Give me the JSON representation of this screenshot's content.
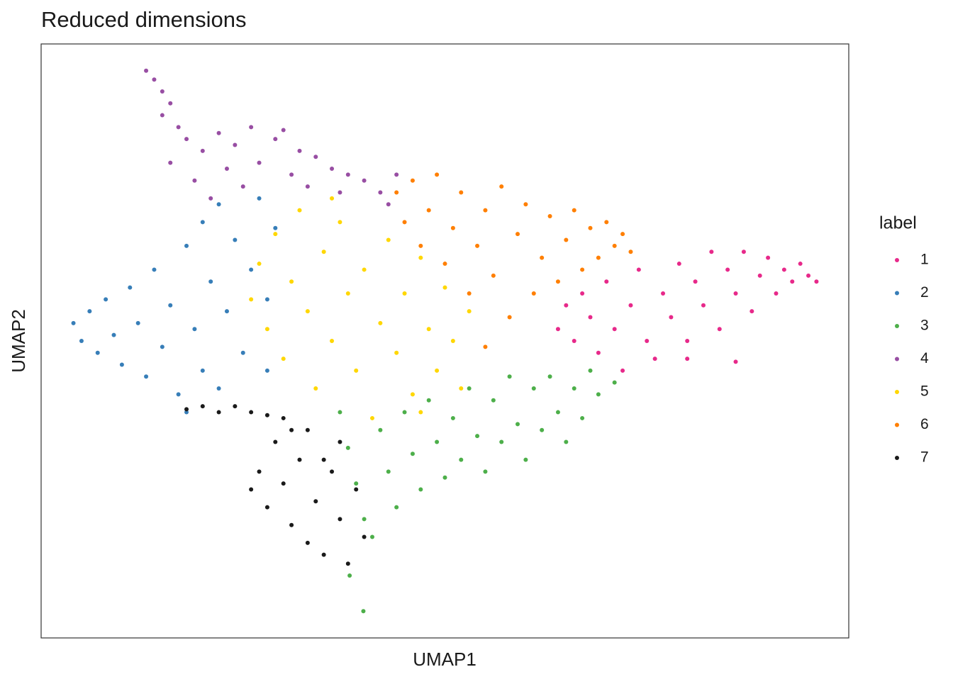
{
  "chart_data": {
    "type": "scatter",
    "title": "Reduced dimensions",
    "x_label": "UMAP1",
    "y_label": "UMAP2",
    "legend_title": "label",
    "legend": "right",
    "xlim": [
      0,
      100
    ],
    "ylim": [
      0,
      100
    ],
    "series": [
      {
        "name": "1",
        "color": "#e7298a",
        "x": [
          64,
          65,
          66,
          67,
          68,
          69,
          70,
          71,
          72,
          73,
          74,
          75,
          76,
          77,
          78,
          79,
          80,
          81,
          82,
          83,
          84,
          85,
          86,
          87,
          88,
          89,
          90,
          91,
          92,
          93,
          94,
          95,
          96,
          86,
          80
        ],
        "values": [
          52,
          56,
          50,
          58,
          54,
          48,
          60,
          52,
          45,
          56,
          62,
          50,
          47,
          58,
          54,
          63,
          50,
          60,
          56,
          65,
          52,
          62,
          58,
          65,
          55,
          61,
          64,
          58,
          62,
          60,
          63,
          61,
          60,
          46.5,
          47
        ]
      },
      {
        "name": "2",
        "color": "#377eb8",
        "x": [
          4,
          5,
          6,
          7,
          8,
          9,
          10,
          11,
          12,
          13,
          14,
          15,
          16,
          17,
          18,
          18,
          19,
          20,
          20,
          21,
          22,
          22,
          23,
          24,
          25,
          26,
          27,
          28,
          28,
          29
        ],
        "values": [
          53,
          50,
          55,
          48,
          57,
          51,
          46,
          59,
          53,
          44,
          62,
          49,
          56,
          41,
          66,
          38,
          52,
          70,
          45,
          60,
          73,
          42,
          55,
          67,
          48,
          62,
          74,
          57,
          45,
          69
        ]
      },
      {
        "name": "3",
        "color": "#4daf4a",
        "x": [
          38.2,
          39.9,
          37,
          38,
          39,
          40,
          41,
          42,
          43,
          44,
          45,
          46,
          47,
          48,
          49,
          50,
          51,
          52,
          53,
          54,
          55,
          56,
          57,
          58,
          59,
          60,
          61,
          62,
          63,
          64,
          65,
          66,
          67,
          68,
          69,
          71
        ],
        "values": [
          10.5,
          4.5,
          38,
          32,
          26,
          20,
          17,
          35,
          28,
          22,
          38,
          31,
          25,
          40,
          33,
          27,
          37,
          30,
          42,
          34,
          28,
          40,
          33,
          44,
          36,
          30,
          42,
          35,
          44,
          38,
          33,
          42,
          37,
          45,
          41,
          43
        ]
      },
      {
        "name": "4",
        "color": "#984ea3",
        "x": [
          13,
          14,
          15,
          16,
          15,
          17,
          16,
          18,
          19,
          20,
          21,
          22,
          23,
          24,
          25,
          26,
          27,
          29,
          30,
          31,
          32,
          33,
          34,
          36,
          37,
          38,
          40,
          42,
          44,
          43
        ],
        "values": [
          95.5,
          94,
          92,
          90,
          88,
          86,
          80,
          84,
          77,
          82,
          74,
          85,
          79,
          83,
          76,
          86,
          80,
          84,
          85.5,
          78,
          82,
          76,
          81,
          79,
          75,
          78,
          77,
          75,
          78,
          73
        ]
      },
      {
        "name": "5",
        "color": "#ffd700",
        "x": [
          26,
          27,
          28,
          29,
          30,
          31,
          32,
          33,
          34,
          35,
          36,
          37,
          38,
          39,
          40,
          41,
          42,
          43,
          44,
          45,
          46,
          47,
          48,
          49,
          50,
          51,
          52,
          53,
          47,
          36
        ],
        "values": [
          57,
          63,
          52,
          68,
          47,
          60,
          72,
          55,
          42,
          65,
          50,
          70,
          58,
          45,
          62,
          37,
          53,
          67,
          48,
          58,
          41,
          64,
          52,
          45,
          59,
          50,
          42,
          55,
          38,
          74
        ]
      },
      {
        "name": "6",
        "color": "#ff7f00",
        "x": [
          44,
          45,
          46,
          47,
          48,
          49,
          50,
          51,
          52,
          53,
          54,
          55,
          55,
          56,
          57,
          58,
          59,
          60,
          61,
          62,
          63,
          64,
          65,
          66,
          67,
          68,
          69,
          70,
          71,
          72,
          73
        ],
        "values": [
          75,
          70,
          77,
          66,
          72,
          78,
          63,
          69,
          75,
          58,
          66,
          72,
          49,
          61,
          76,
          54,
          68,
          73,
          58,
          64,
          71,
          60,
          67,
          72,
          62,
          69,
          64,
          70,
          66,
          68,
          65
        ]
      },
      {
        "name": "7",
        "color": "#1a1a1a",
        "x": [
          18,
          20,
          22,
          24,
          26,
          28,
          30,
          29,
          31,
          32,
          27,
          26,
          28,
          30,
          31,
          33,
          34,
          35,
          36,
          37,
          38,
          39,
          40,
          37,
          35,
          33
        ],
        "values": [
          38.5,
          39,
          38,
          39,
          38,
          37.5,
          37,
          33,
          35,
          30,
          28,
          25,
          22,
          26,
          19,
          16,
          23,
          14,
          28,
          20,
          12.5,
          25,
          17,
          33,
          30,
          35
        ]
      }
    ]
  }
}
